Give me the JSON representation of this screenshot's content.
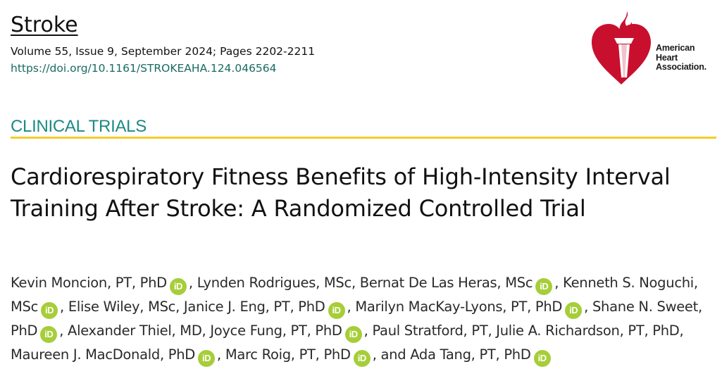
{
  "journal": {
    "name": "Stroke",
    "citation": "Volume 55, Issue 9, September 2024; Pages 2202-2211",
    "doi": "https://doi.org/10.1161/STROKEAHA.124.046564"
  },
  "publisher": {
    "line1": "American",
    "line2": "Heart",
    "line3": "Association."
  },
  "article": {
    "section": "CLINICAL TRIALS",
    "title": "Cardiorespiratory Fitness Benefits of High-Intensity Interval Training After Stroke: A Randomized Controlled Trial"
  },
  "orcid_label": "iD",
  "authors": [
    {
      "name": "Kevin Moncion, PT, PhD",
      "orcid": true
    },
    {
      "name": "Lynden Rodrigues, MSc",
      "orcid": false
    },
    {
      "name": "Bernat De Las Heras, MSc",
      "orcid": true
    },
    {
      "name": "Kenneth S. Noguchi, MSc",
      "orcid": true
    },
    {
      "name": "Elise Wiley, MSc",
      "orcid": false
    },
    {
      "name": "Janice J. Eng, PT, PhD",
      "orcid": true
    },
    {
      "name": "Marilyn MacKay-Lyons, PT, PhD",
      "orcid": true
    },
    {
      "name": "Shane N. Sweet, PhD",
      "orcid": true
    },
    {
      "name": "Alexander Thiel, MD",
      "orcid": false
    },
    {
      "name": "Joyce Fung, PT, PhD",
      "orcid": true
    },
    {
      "name": "Paul Stratford, PT",
      "orcid": false
    },
    {
      "name": "Julie A. Richardson, PT, PhD",
      "orcid": false
    },
    {
      "name": "Maureen J. MacDonald, PhD",
      "orcid": true
    },
    {
      "name": "Marc Roig, PT, PhD",
      "orcid": true
    },
    {
      "name": "Ada Tang, PT, PhD",
      "orcid": true
    }
  ],
  "separators": {
    "comma": ", ",
    "final": ", and "
  },
  "colors": {
    "section_text": "#1c8a84",
    "section_rule": "#f3cc2b",
    "doi_link": "#1a6b63",
    "orcid_badge": "#a6ce39",
    "logo_red": "#c8102e"
  }
}
